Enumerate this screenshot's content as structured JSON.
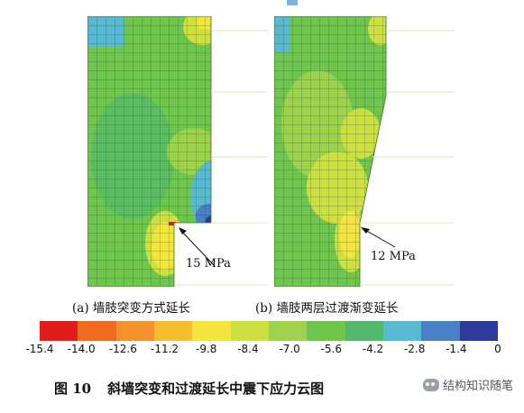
{
  "panels": [
    {
      "caption": "(a) 墙肢突变方式延长",
      "callout": "15 MPa"
    },
    {
      "caption": "(b) 墙肢两层过渡渐变延长",
      "callout": "12 MPa"
    }
  ],
  "color_scale": {
    "ticks": [
      "-15.4",
      "-14.0",
      "-12.6",
      "-11.2",
      "-9.8",
      "-8.4",
      "-7.0",
      "-5.6",
      "-4.2",
      "-2.8",
      "-1.4",
      "0"
    ],
    "colors": [
      "#e21b1b",
      "#f06a1f",
      "#f5932a",
      "#f5be2e",
      "#f3e53b",
      "#cde040",
      "#9dd24a",
      "#6fc64c",
      "#52b96c",
      "#58b9d2",
      "#4a80c8",
      "#2d3c9a"
    ]
  },
  "figure_caption": {
    "number": "图 10",
    "text": "斜墙突变和过渡延长中震下应力云图"
  },
  "watermark": "结构知识随笔"
}
